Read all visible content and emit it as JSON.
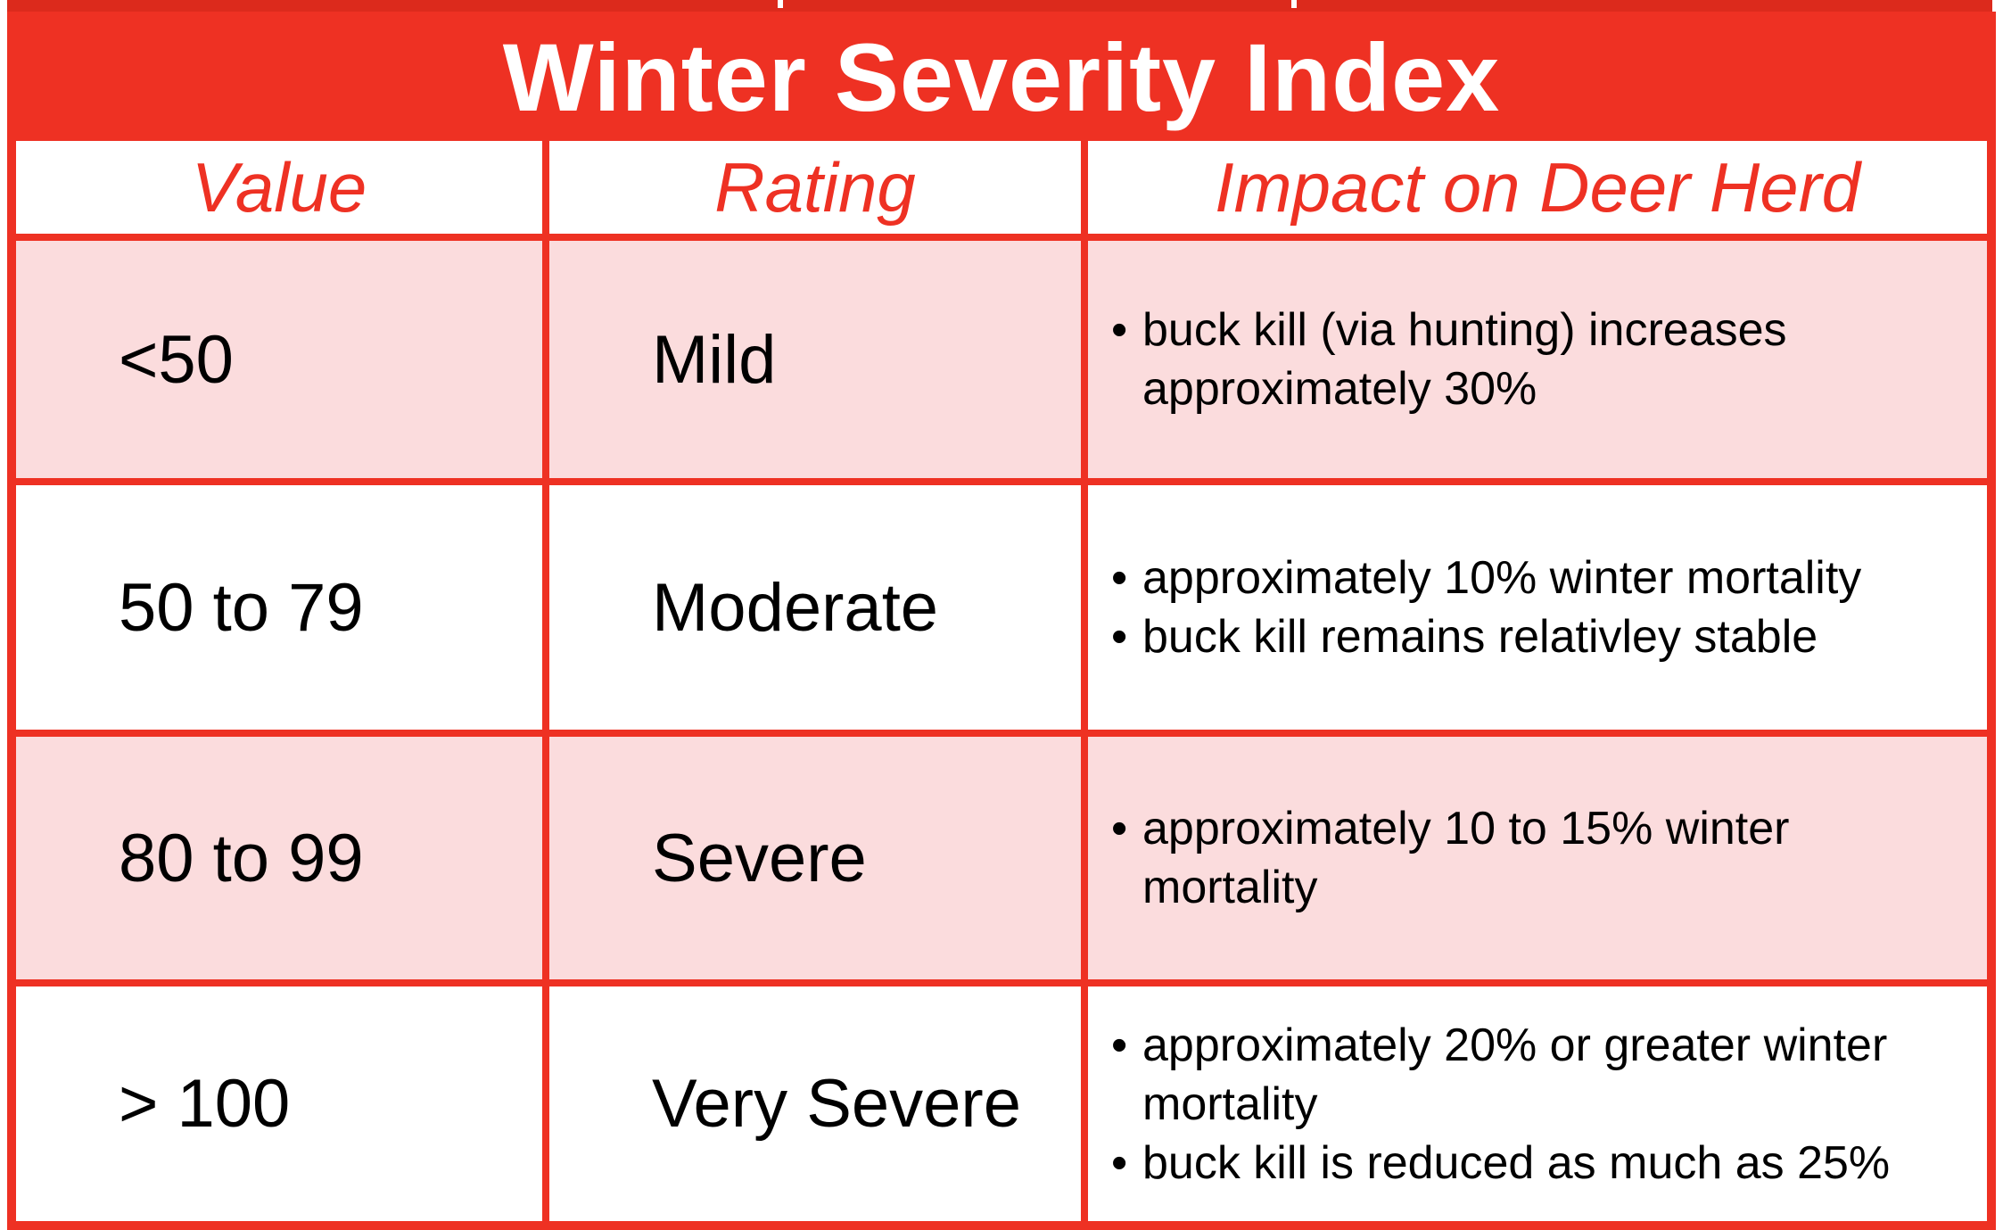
{
  "colors": {
    "table_red": "#EE3123",
    "top_strip_red": "#DC2A1C",
    "row_pink": "#FBDCDD",
    "row_white": "#FFFFFF",
    "title_text": "#FFFFFF",
    "header_text": "#EE3123",
    "body_text": "#000000"
  },
  "table": {
    "title": "Winter Severity Index",
    "columns": [
      "Value",
      "Rating",
      "Impact on Deer Herd"
    ],
    "rows": [
      {
        "value": "<50",
        "rating": "Mild",
        "impacts": [
          "buck kill (via hunting) increases approximately 30%"
        ]
      },
      {
        "value": "50 to 79",
        "rating": "Moderate",
        "impacts": [
          "approximately 10% winter mortality",
          "buck kill remains relativley stable"
        ]
      },
      {
        "value": "80 to 99",
        "rating": "Severe",
        "impacts": [
          "approximately 10 to 15% winter mortality"
        ]
      },
      {
        "value": "> 100",
        "rating": "Very Severe",
        "impacts": [
          "approximately 20% or greater winter mortality",
          "buck kill is reduced as much as 25%"
        ]
      }
    ]
  }
}
